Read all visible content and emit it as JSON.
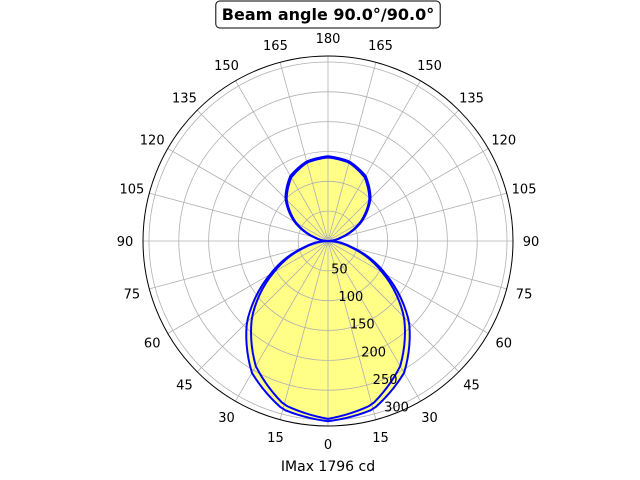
{
  "chart_data": {
    "type": "polar",
    "title": "Beam angle 90.0°/90.0°",
    "xlabel": "IMax 1796 cd",
    "angle_tick_labels": [
      "0",
      "15",
      "30",
      "45",
      "60",
      "75",
      "90",
      "105",
      "120",
      "135",
      "150",
      "165",
      "180",
      "165",
      "150",
      "135",
      "120",
      "105",
      "90",
      "75",
      "60",
      "45",
      "30",
      "15"
    ],
    "radial_tick_labels": [
      "50",
      "100",
      "150",
      "200",
      "250",
      "300"
    ],
    "radial_ticks": [
      50,
      100,
      150,
      200,
      250,
      300
    ],
    "rmax": 310,
    "grid": true,
    "fill_color": "#ffff88",
    "line_color": "#0000ff",
    "series": [
      {
        "angles": [
          0,
          15,
          30,
          45,
          60,
          75,
          90,
          105,
          120,
          135,
          150,
          165,
          180
        ],
        "values": [
          298,
          284,
          242,
          180,
          105,
          38,
          0,
          22,
          62,
          98,
          123,
          136,
          140
        ]
      },
      {
        "angles": [
          0,
          15,
          30,
          45,
          60,
          75,
          90,
          105,
          120,
          135,
          150,
          165,
          180
        ],
        "values": [
          302,
          292,
          255,
          192,
          112,
          42,
          0,
          24,
          65,
          101,
          126,
          138,
          142
        ]
      }
    ]
  }
}
